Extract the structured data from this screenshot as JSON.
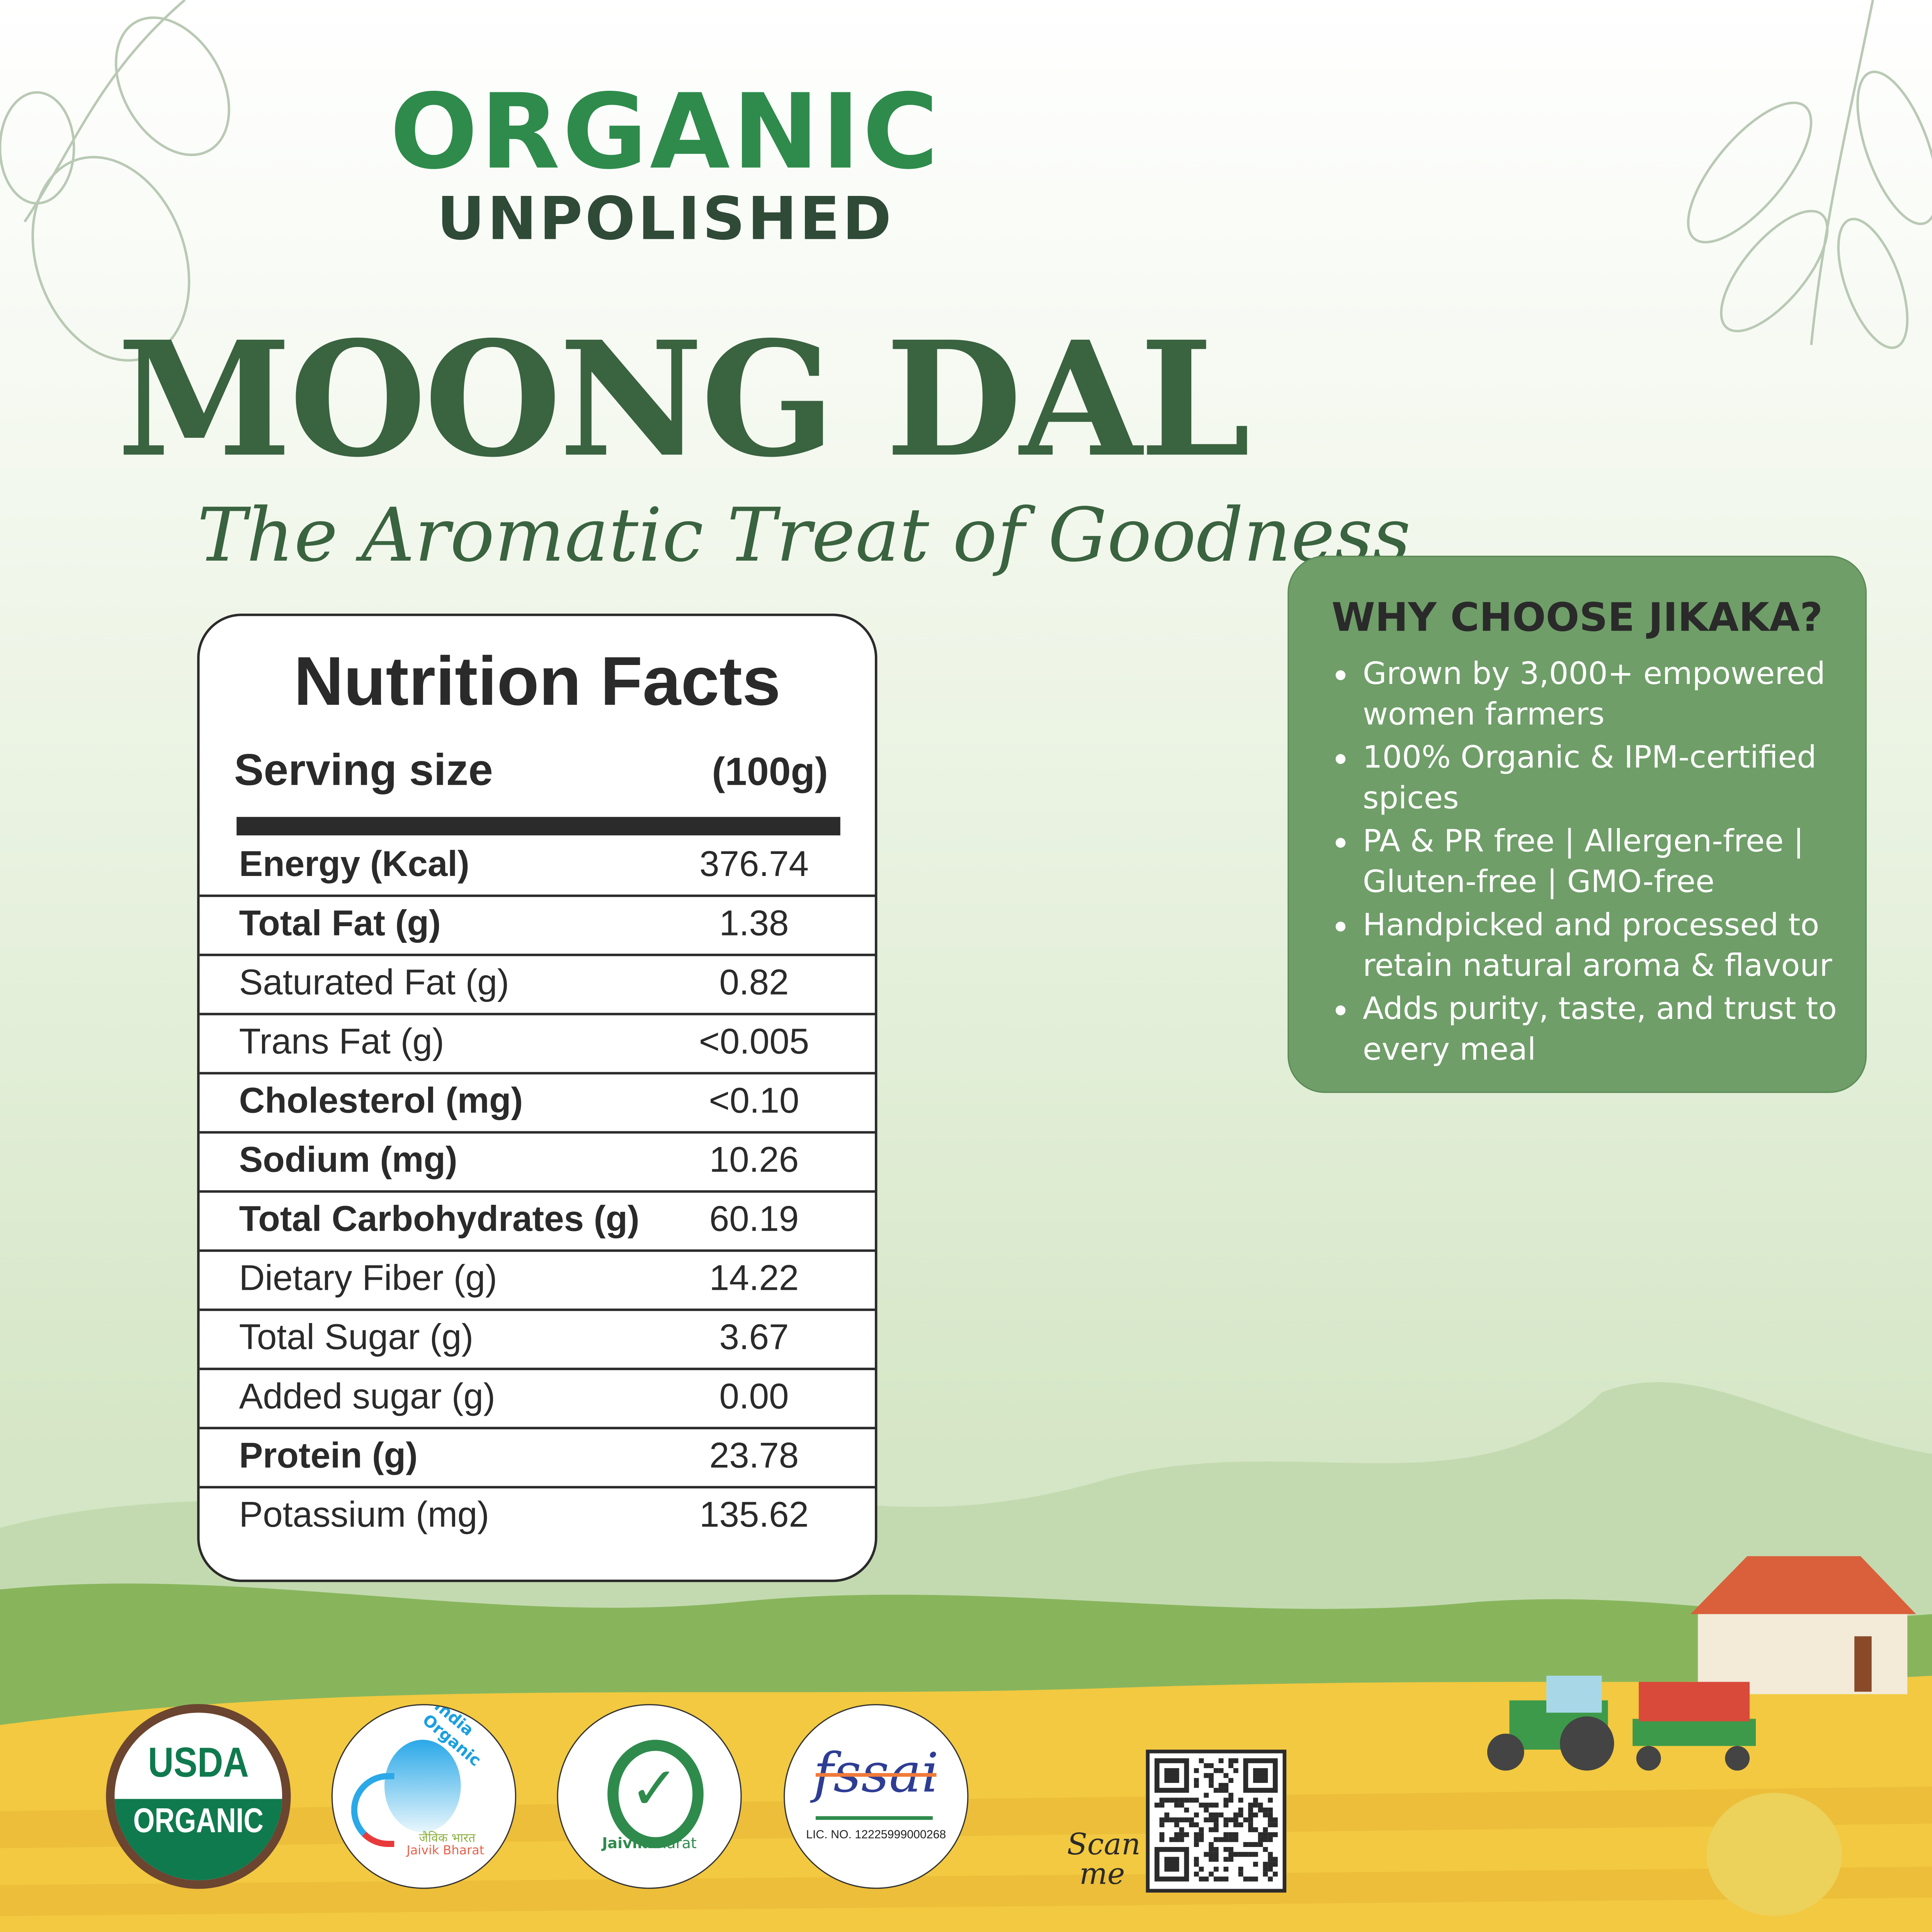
{
  "header": {
    "line1": "ORGANIC",
    "line2": "UNPOLISHED",
    "product": "MOONG DAL",
    "tagline": "The Aromatic Treat of Goodness"
  },
  "nutrition": {
    "title": "Nutrition Facts",
    "serving_label": "Serving size",
    "serving_value": "(100g)",
    "rows": [
      {
        "label": "Energy (Kcal)",
        "value": "376.74",
        "bold": true
      },
      {
        "label": "Total Fat (g)",
        "value": "1.38",
        "bold": true
      },
      {
        "label": "Saturated Fat (g)",
        "value": "0.82",
        "bold": false
      },
      {
        "label": "Trans Fat (g)",
        "value": "<0.005",
        "bold": false
      },
      {
        "label": "Cholesterol (mg)",
        "value": "<0.10",
        "bold": true
      },
      {
        "label": "Sodium (mg)",
        "value": "10.26",
        "bold": true
      },
      {
        "label": "Total Carbohydrates (g)",
        "value": "60.19",
        "bold": true
      },
      {
        "label": "Dietary Fiber (g)",
        "value": "14.22",
        "bold": false
      },
      {
        "label": "Total Sugar (g)",
        "value": "3.67",
        "bold": false
      },
      {
        "label": "Added sugar (g)",
        "value": "0.00",
        "bold": false
      },
      {
        "label": "Protein (g)",
        "value": "23.78",
        "bold": true
      },
      {
        "label": "Potassium (mg)",
        "value": "135.62",
        "bold": false
      }
    ]
  },
  "why": {
    "title": "WHY CHOOSE JIKAKA?",
    "points": [
      "Grown by 3,000+ empowered women farmers",
      "100% Organic & IPM-certified spices",
      "PA & PR free | Allergen-free | Gluten-free | GMO-free",
      "Handpicked and processed to retain natural aroma & flavour",
      "Adds purity, taste, and trust to every meal"
    ]
  },
  "logos": {
    "usda_top": "USDA",
    "usda_bottom": "ORGANIC",
    "india_organic": "India Organic",
    "india_hindi": "जैविक भारत",
    "india_jb": "Jaivik Bharat",
    "jaivik_a": "Jaivik",
    "jaivik_b": "Bharat",
    "fssai": "fssai",
    "fssai_lic": "LIC. NO. 12225999000268"
  },
  "qr": {
    "scan1": "Scan",
    "scan2": "me"
  },
  "colors": {
    "brand_green": "#2e8b4c",
    "dark_green": "#3a6340",
    "box_green": "#6f9e68",
    "field_yellow": "#f2c940"
  }
}
